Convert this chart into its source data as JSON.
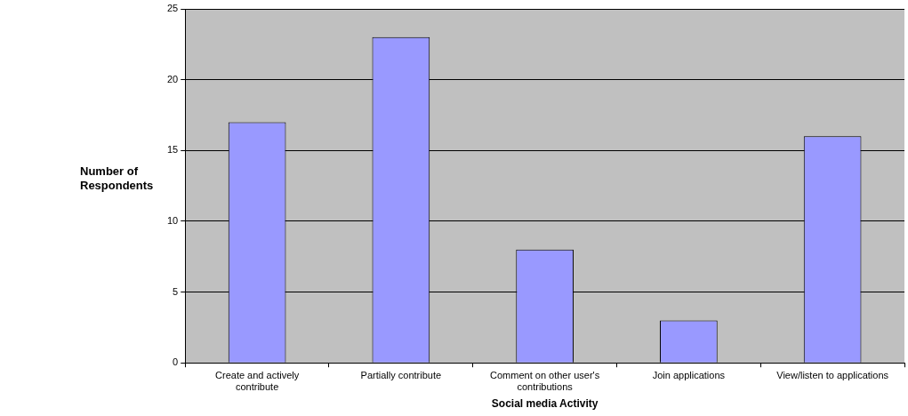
{
  "chart_data": {
    "type": "bar",
    "xlabel": "Social media Activity",
    "ylabel": "Number of Respondents",
    "categories": [
      "Create and actively contribute",
      "Partially contribute",
      "Comment on other user's contributions",
      "Join applications",
      "View/listen to applications"
    ],
    "values": [
      17,
      23,
      8,
      3,
      16
    ],
    "color": "#9999ff",
    "ylim": [
      0,
      25
    ],
    "yticks": [
      0,
      5,
      10,
      15,
      20,
      25
    ],
    "grid": "y",
    "legend": false
  }
}
